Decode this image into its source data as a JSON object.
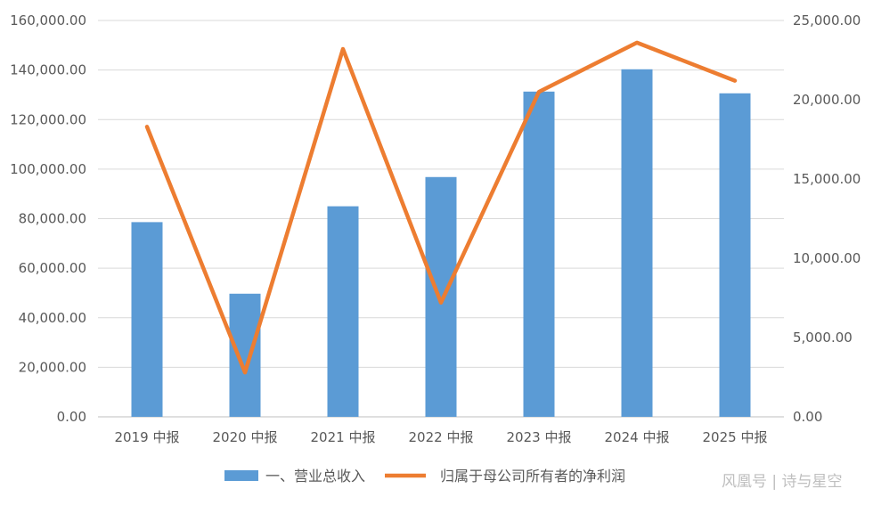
{
  "chart_data": {
    "type": "bar",
    "categories": [
      "2019 中报",
      "2020 中报",
      "2021 中报",
      "2022 中报",
      "2023 中报",
      "2024 中报",
      "2025 中报"
    ],
    "series": [
      {
        "name": "一、营业总收入",
        "type": "bar",
        "axis": "left",
        "color": "#5b9bd5",
        "values": [
          78600,
          49700,
          85000,
          96800,
          131300,
          140300,
          130600
        ]
      },
      {
        "name": "归属于母公司所有者的净利润",
        "type": "line",
        "axis": "right",
        "color": "#ed7d31",
        "values": [
          18300,
          2800,
          23200,
          7200,
          20500,
          23600,
          21200
        ]
      }
    ],
    "y_left": {
      "lim": [
        0,
        160000
      ],
      "ticks": [
        "0.00",
        "20,000.00",
        "40,000.00",
        "60,000.00",
        "80,000.00",
        "100,000.00",
        "120,000.00",
        "140,000.00",
        "160,000.00"
      ]
    },
    "y_right": {
      "lim": [
        0,
        25000
      ],
      "ticks": [
        "0.00",
        "5,000.00",
        "10,000.00",
        "15,000.00",
        "20,000.00",
        "25,000.00"
      ]
    },
    "grid": true,
    "legend_position": "bottom"
  },
  "watermark": {
    "text": "风凰号 | 诗与星空"
  }
}
